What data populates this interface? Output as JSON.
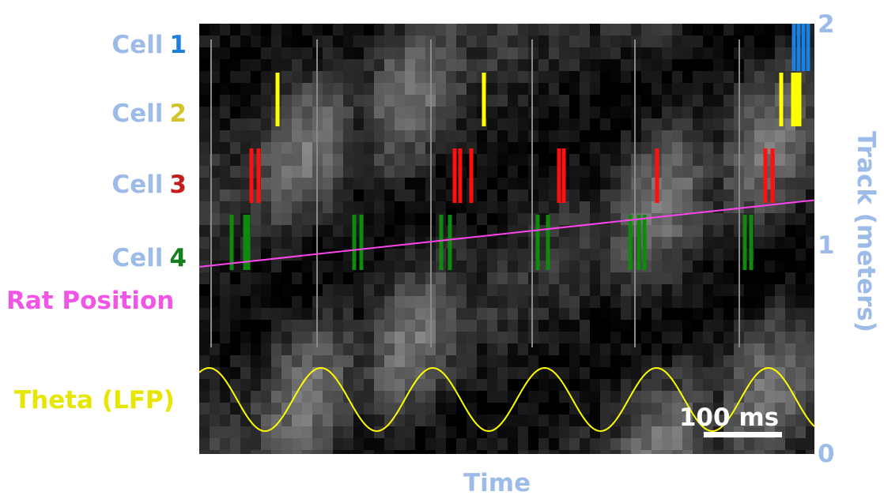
{
  "chart_data": {
    "type": "raster",
    "xlabel": "Time",
    "ylabel": "Track (meters)",
    "yticks": [
      "0",
      "1",
      "2"
    ],
    "ylim": [
      0,
      2
    ],
    "scale_bar": "100 ms",
    "cells": [
      {
        "prefix": "Cell",
        "number": "1",
        "color": "#1e7fe0",
        "spike_groups": [
          [
            1004,
            1010,
            1016,
            1022
          ]
        ]
      },
      {
        "prefix": "Cell",
        "number": "2",
        "color": "#ffff00",
        "spike_groups": [
          [
            351
          ],
          [
            612
          ],
          [
            988,
            1003,
            1007,
            1011
          ]
        ]
      },
      {
        "prefix": "Cell",
        "number": "3",
        "color": "#ff1010",
        "spike_groups": [
          [
            318,
            327
          ],
          [
            575,
            582,
            596
          ],
          [
            707,
            713
          ],
          [
            831
          ],
          [
            968,
            977
          ]
        ]
      },
      {
        "prefix": "Cell",
        "number": "4",
        "color": "#0f8a0f",
        "spike_groups": [
          [
            293,
            310,
            314
          ],
          [
            448,
            457
          ],
          [
            558,
            569
          ],
          [
            680,
            693
          ],
          [
            797,
            808,
            815
          ],
          [
            942,
            950
          ]
        ]
      }
    ],
    "series": [
      {
        "name": "Rat Position",
        "color": "#ff44ee",
        "start_m": 0.87,
        "end_m": 1.18
      },
      {
        "name": "Theta (LFP)",
        "color": "#ffff00",
        "cycles": 5.5
      }
    ]
  }
}
